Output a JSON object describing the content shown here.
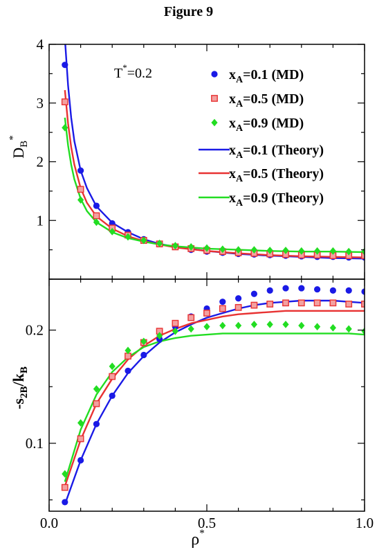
{
  "figure": {
    "title": "Figure 9"
  },
  "chart_data": [
    {
      "type": "scatter",
      "panel": "top",
      "ylabel": "D",
      "ylabel_sub": "B",
      "ylabel_sup": "*",
      "xlabel": "",
      "annotation": {
        "text": "T",
        "sup": "*",
        "rest": "=0.2"
      },
      "xlim": [
        0,
        1
      ],
      "ylim": [
        0,
        4
      ],
      "yticks": [
        1,
        2,
        3,
        4
      ],
      "ytick_labels": [
        "1",
        "2",
        "3",
        "4"
      ],
      "xticks": [
        0,
        0.5,
        1
      ],
      "legend_position": "top-right",
      "series": [
        {
          "name": "x",
          "sub": "A",
          "rest": "=0.1 (MD)",
          "kind": "markers",
          "marker": "circle",
          "color": "#1a1ae6",
          "x": [
            0.05,
            0.1,
            0.15,
            0.2,
            0.25,
            0.3,
            0.35,
            0.4,
            0.45,
            0.5,
            0.55,
            0.6,
            0.65,
            0.7,
            0.75,
            0.8,
            0.85,
            0.9,
            0.95,
            1.0
          ],
          "y": [
            3.65,
            1.85,
            1.25,
            0.95,
            0.8,
            0.68,
            0.6,
            0.55,
            0.5,
            0.47,
            0.45,
            0.43,
            0.42,
            0.41,
            0.4,
            0.39,
            0.38,
            0.38,
            0.37,
            0.37
          ]
        },
        {
          "name": "x",
          "sub": "A",
          "rest": "=0.5 (MD)",
          "kind": "markers",
          "marker": "square",
          "color": "#e83232",
          "x": [
            0.05,
            0.1,
            0.15,
            0.2,
            0.25,
            0.3,
            0.35,
            0.4,
            0.45,
            0.5,
            0.55,
            0.6,
            0.65,
            0.7,
            0.75,
            0.8,
            0.85,
            0.9,
            0.95,
            1.0
          ],
          "y": [
            3.02,
            1.53,
            1.08,
            0.87,
            0.75,
            0.66,
            0.6,
            0.55,
            0.52,
            0.49,
            0.47,
            0.45,
            0.44,
            0.43,
            0.42,
            0.41,
            0.41,
            0.4,
            0.4,
            0.4
          ]
        },
        {
          "name": "x",
          "sub": "A",
          "rest": "=0.9 (MD)",
          "kind": "markers",
          "marker": "diamond",
          "color": "#22dd22",
          "x": [
            0.05,
            0.1,
            0.15,
            0.2,
            0.25,
            0.3,
            0.35,
            0.4,
            0.45,
            0.5,
            0.55,
            0.6,
            0.65,
            0.7,
            0.75,
            0.8,
            0.85,
            0.9,
            0.95,
            1.0
          ],
          "y": [
            2.58,
            1.35,
            0.97,
            0.81,
            0.72,
            0.66,
            0.61,
            0.57,
            0.55,
            0.53,
            0.51,
            0.5,
            0.5,
            0.49,
            0.49,
            0.48,
            0.48,
            0.48,
            0.47,
            0.47
          ]
        },
        {
          "name": "x",
          "sub": "A",
          "rest": "=0.1 (Theory)",
          "kind": "line",
          "color": "#1a1ae6",
          "x": [
            0.05,
            0.06,
            0.07,
            0.08,
            0.1,
            0.12,
            0.15,
            0.2,
            0.25,
            0.3,
            0.35,
            0.4,
            0.5,
            0.6,
            0.7,
            0.8,
            0.9,
            1.0
          ],
          "y": [
            4.1,
            3.3,
            2.75,
            2.35,
            1.85,
            1.55,
            1.24,
            0.96,
            0.8,
            0.68,
            0.6,
            0.55,
            0.48,
            0.43,
            0.4,
            0.38,
            0.36,
            0.35
          ]
        },
        {
          "name": "x",
          "sub": "A",
          "rest": "=0.5 (Theory)",
          "kind": "line",
          "color": "#e83232",
          "x": [
            0.05,
            0.06,
            0.07,
            0.08,
            0.1,
            0.12,
            0.15,
            0.2,
            0.25,
            0.3,
            0.35,
            0.4,
            0.5,
            0.6,
            0.7,
            0.8,
            0.9,
            1.0
          ],
          "y": [
            3.22,
            2.65,
            2.25,
            1.95,
            1.55,
            1.3,
            1.07,
            0.86,
            0.73,
            0.65,
            0.59,
            0.54,
            0.48,
            0.44,
            0.41,
            0.39,
            0.38,
            0.37
          ]
        },
        {
          "name": "x",
          "sub": "A",
          "rest": "=0.9 (Theory)",
          "kind": "line",
          "color": "#22dd22",
          "x": [
            0.05,
            0.06,
            0.07,
            0.08,
            0.1,
            0.12,
            0.15,
            0.2,
            0.25,
            0.3,
            0.35,
            0.4,
            0.5,
            0.6,
            0.7,
            0.8,
            0.9,
            1.0
          ],
          "y": [
            2.75,
            2.28,
            1.95,
            1.7,
            1.37,
            1.16,
            0.97,
            0.8,
            0.7,
            0.64,
            0.59,
            0.56,
            0.52,
            0.5,
            0.48,
            0.47,
            0.47,
            0.46
          ]
        }
      ]
    },
    {
      "type": "scatter",
      "panel": "bottom",
      "ylabel": "-s",
      "ylabel_sub": "2B",
      "ylabel_mid": "/k",
      "ylabel_sub2": "B",
      "xlabel": "ρ",
      "xlabel_sup": "*",
      "xlim": [
        0,
        1
      ],
      "ylim": [
        0.04,
        0.245
      ],
      "yticks": [
        0.1,
        0.2
      ],
      "ytick_labels": [
        "0.1",
        "0.2"
      ],
      "xticks": [
        0,
        0.5,
        1
      ],
      "xtick_labels": [
        "0.0",
        "0.5",
        "1.0"
      ],
      "series": [
        {
          "name": "x_A=0.1 (MD)",
          "kind": "markers",
          "marker": "circle",
          "color": "#1a1ae6",
          "x": [
            0.05,
            0.1,
            0.15,
            0.2,
            0.25,
            0.3,
            0.35,
            0.4,
            0.45,
            0.5,
            0.55,
            0.6,
            0.65,
            0.7,
            0.75,
            0.8,
            0.85,
            0.9,
            0.95,
            1.0
          ],
          "y": [
            0.048,
            0.085,
            0.117,
            0.142,
            0.164,
            0.178,
            0.192,
            0.203,
            0.212,
            0.219,
            0.225,
            0.228,
            0.232,
            0.235,
            0.237,
            0.237,
            0.236,
            0.235,
            0.235,
            0.234
          ]
        },
        {
          "name": "x_A=0.5 (MD)",
          "kind": "markers",
          "marker": "square",
          "color": "#e83232",
          "x": [
            0.05,
            0.1,
            0.15,
            0.2,
            0.25,
            0.3,
            0.35,
            0.4,
            0.45,
            0.5,
            0.55,
            0.6,
            0.65,
            0.7,
            0.75,
            0.8,
            0.85,
            0.9,
            0.95,
            1.0
          ],
          "y": [
            0.061,
            0.104,
            0.135,
            0.159,
            0.177,
            0.189,
            0.199,
            0.206,
            0.211,
            0.215,
            0.219,
            0.22,
            0.222,
            0.223,
            0.224,
            0.224,
            0.224,
            0.224,
            0.223,
            0.223
          ]
        },
        {
          "name": "x_A=0.9 (MD)",
          "kind": "markers",
          "marker": "diamond",
          "color": "#22dd22",
          "x": [
            0.05,
            0.1,
            0.15,
            0.2,
            0.25,
            0.3,
            0.35,
            0.4,
            0.45,
            0.5,
            0.55,
            0.6,
            0.65,
            0.7,
            0.75,
            0.8,
            0.85,
            0.9,
            0.95,
            1.0
          ],
          "y": [
            0.073,
            0.118,
            0.148,
            0.168,
            0.182,
            0.19,
            0.195,
            0.199,
            0.201,
            0.203,
            0.204,
            0.204,
            0.205,
            0.205,
            0.205,
            0.204,
            0.203,
            0.202,
            0.201,
            0.199
          ]
        },
        {
          "name": "x_A=0.1 (Theory)",
          "kind": "line",
          "color": "#1a1ae6",
          "x": [
            0.05,
            0.1,
            0.15,
            0.2,
            0.25,
            0.3,
            0.35,
            0.4,
            0.45,
            0.5,
            0.55,
            0.6,
            0.65,
            0.7,
            0.75,
            0.8,
            0.85,
            0.9,
            0.95,
            1.0
          ],
          "y": [
            0.046,
            0.085,
            0.117,
            0.142,
            0.162,
            0.177,
            0.189,
            0.198,
            0.205,
            0.211,
            0.215,
            0.219,
            0.222,
            0.224,
            0.225,
            0.226,
            0.226,
            0.226,
            0.225,
            0.224
          ]
        },
        {
          "name": "x_A=0.5 (Theory)",
          "kind": "line",
          "color": "#e83232",
          "x": [
            0.05,
            0.1,
            0.15,
            0.2,
            0.25,
            0.3,
            0.35,
            0.4,
            0.45,
            0.5,
            0.55,
            0.6,
            0.65,
            0.7,
            0.75,
            0.8,
            0.85,
            0.9,
            0.95,
            1.0
          ],
          "y": [
            0.062,
            0.103,
            0.135,
            0.157,
            0.174,
            0.186,
            0.195,
            0.201,
            0.206,
            0.209,
            0.212,
            0.214,
            0.215,
            0.216,
            0.217,
            0.217,
            0.217,
            0.217,
            0.217,
            0.217
          ]
        },
        {
          "name": "x_A=0.9 (Theory)",
          "kind": "line",
          "color": "#22dd22",
          "x": [
            0.05,
            0.1,
            0.15,
            0.2,
            0.25,
            0.3,
            0.35,
            0.4,
            0.45,
            0.5,
            0.55,
            0.6,
            0.65,
            0.7,
            0.75,
            0.8,
            0.85,
            0.9,
            0.95,
            1.0
          ],
          "y": [
            0.066,
            0.112,
            0.143,
            0.163,
            0.176,
            0.185,
            0.19,
            0.193,
            0.195,
            0.196,
            0.197,
            0.197,
            0.197,
            0.197,
            0.197,
            0.197,
            0.197,
            0.197,
            0.197,
            0.196
          ]
        }
      ]
    }
  ]
}
